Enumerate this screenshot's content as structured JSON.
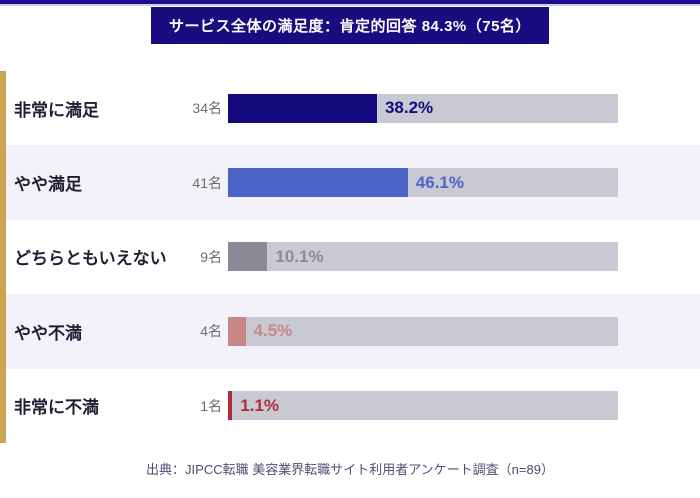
{
  "colors": {
    "top-border": "#1c0e8c",
    "top-border-line": "#cdcde9",
    "banner-bg": "#1a0b80",
    "banner-text": "#ffffff",
    "gold-accent": "#c9a64f",
    "row-bg": "#ffffff",
    "row-alt-bg": "#f2f2f8",
    "track": "#c9c9d4",
    "label-text": "#1f1f33",
    "count-text": "#6b6b78",
    "footer-text": "#4d4d73"
  },
  "footer": {
    "source": "出典：JIPCC転職 美容業界転職サイト利用者アンケート調査（n=89）"
  },
  "chart_data": {
    "type": "bar",
    "orientation": "horizontal",
    "title": "サービス全体の満足度：肯定的回答 84.3%（75名）",
    "categories": [
      "非常に満足",
      "やや満足",
      "どちらともいえない",
      "やや不満",
      "非常に不満"
    ],
    "counts": [
      34,
      41,
      9,
      4,
      1
    ],
    "values": [
      38.2,
      46.1,
      10.1,
      4.5,
      1.1
    ],
    "n": 89,
    "positive_total_percent": 84.3,
    "positive_total_count": 75,
    "xlim": [
      0,
      100
    ],
    "rows": [
      {
        "label": "非常に満足",
        "count_label": "34名",
        "percent": 38.2,
        "percent_label": "38.2%",
        "color": "#150a7d"
      },
      {
        "label": "やや満足",
        "count_label": "41名",
        "percent": 46.1,
        "percent_label": "46.1%",
        "color": "#4c63c7"
      },
      {
        "label": "どちらともいえない",
        "count_label": "9名",
        "percent": 10.1,
        "percent_label": "10.1%",
        "color": "#8b8b98"
      },
      {
        "label": "やや不満",
        "count_label": "4名",
        "percent": 4.5,
        "percent_label": "4.5%",
        "color": "#c98787"
      },
      {
        "label": "非常に不満",
        "count_label": "1名",
        "percent": 1.1,
        "percent_label": "1.1%",
        "color": "#b22a32"
      }
    ]
  }
}
